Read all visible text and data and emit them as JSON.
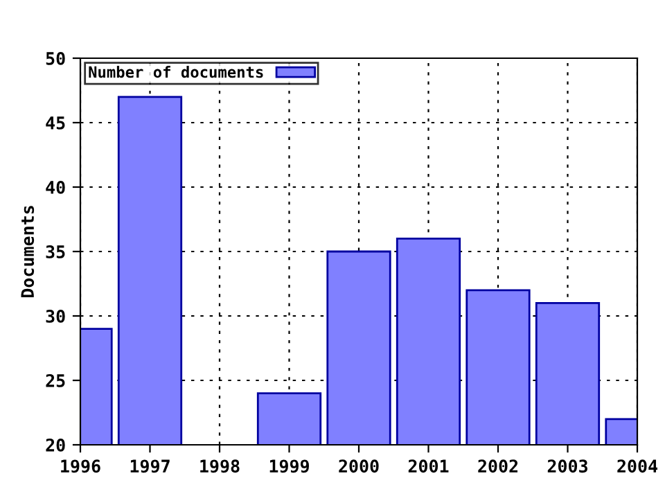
{
  "chart_data": {
    "type": "bar",
    "ylabel": "Documents",
    "x": [
      1996,
      1997,
      1998,
      1999,
      2000,
      2001,
      2002,
      2003,
      2004
    ],
    "series": [
      {
        "name": "Number of documents",
        "color": "#8080ff",
        "values": [
          29,
          47,
          null,
          24,
          35,
          36,
          32,
          31,
          22
        ]
      }
    ],
    "xlim": [
      1996,
      2004
    ],
    "xticks": [
      1996,
      1997,
      1998,
      1999,
      2000,
      2001,
      2002,
      2003,
      2004
    ],
    "ylim": [
      20,
      50
    ],
    "yticks": [
      20,
      25,
      30,
      35,
      40,
      45,
      50
    ],
    "grid": true,
    "legend": "top left"
  }
}
